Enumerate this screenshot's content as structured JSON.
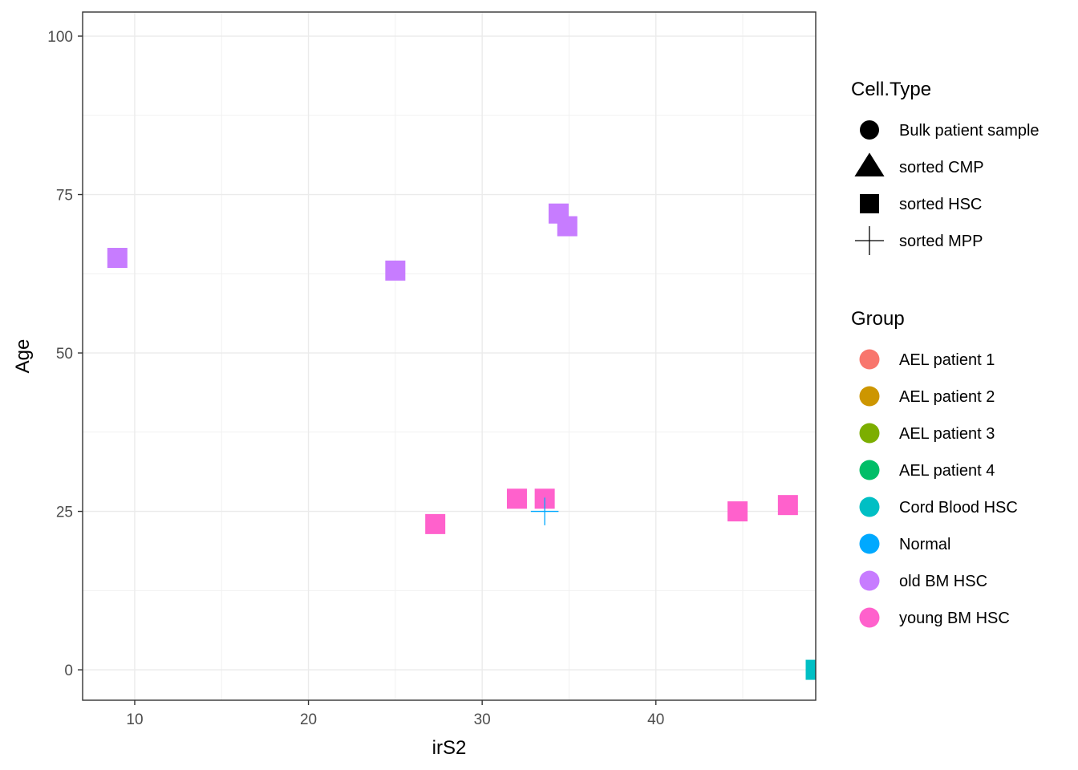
{
  "chart_data": {
    "type": "scatter",
    "xlabel": "irS2",
    "ylabel": "Age",
    "xlim": [
      7,
      49.2
    ],
    "ylim": [
      -4.8,
      103.8
    ],
    "x_ticks": [
      10,
      20,
      30,
      40
    ],
    "x_tick_labels": [
      "10",
      "20",
      "30",
      "40"
    ],
    "y_ticks": [
      0,
      25,
      50,
      75,
      100
    ],
    "y_tick_labels": [
      "0",
      "25",
      "50",
      "75",
      "100"
    ],
    "grid": true,
    "legend_position": "right",
    "shape_legend": {
      "title": "Cell.Type",
      "entries": [
        {
          "label": "Bulk patient sample",
          "shape": "circle"
        },
        {
          "label": "sorted CMP",
          "shape": "triangle"
        },
        {
          "label": "sorted HSC",
          "shape": "square"
        },
        {
          "label": "sorted MPP",
          "shape": "plus"
        }
      ]
    },
    "color_legend": {
      "title": "Group",
      "entries": [
        {
          "label": "AEL patient 1",
          "color": "#F8766D"
        },
        {
          "label": "AEL patient 2",
          "color": "#CD9600"
        },
        {
          "label": "AEL patient 3",
          "color": "#7CAE00"
        },
        {
          "label": "AEL patient 4",
          "color": "#00BE67"
        },
        {
          "label": "Cord Blood HSC",
          "color": "#00BFC4"
        },
        {
          "label": "Normal",
          "color": "#00A9FF"
        },
        {
          "label": "old BM HSC",
          "color": "#C77CFF"
        },
        {
          "label": "young BM HSC",
          "color": "#FF61CC"
        }
      ]
    },
    "points": [
      {
        "x": 9.0,
        "y": 65,
        "group": "old BM HSC",
        "cell_type": "sorted HSC"
      },
      {
        "x": 25.0,
        "y": 63,
        "group": "old BM HSC",
        "cell_type": "sorted HSC"
      },
      {
        "x": 34.4,
        "y": 72,
        "group": "old BM HSC",
        "cell_type": "sorted HSC"
      },
      {
        "x": 34.9,
        "y": 70,
        "group": "old BM HSC",
        "cell_type": "sorted HSC"
      },
      {
        "x": 27.3,
        "y": 23,
        "group": "young BM HSC",
        "cell_type": "sorted HSC"
      },
      {
        "x": 32.0,
        "y": 27,
        "group": "young BM HSC",
        "cell_type": "sorted HSC"
      },
      {
        "x": 33.6,
        "y": 27,
        "group": "young BM HSC",
        "cell_type": "sorted HSC"
      },
      {
        "x": 44.7,
        "y": 25,
        "group": "young BM HSC",
        "cell_type": "sorted HSC"
      },
      {
        "x": 47.6,
        "y": 26,
        "group": "young BM HSC",
        "cell_type": "sorted HSC"
      },
      {
        "x": 33.6,
        "y": 25,
        "group": "Normal",
        "cell_type": "sorted MPP"
      },
      {
        "x": 49.2,
        "y": 0,
        "group": "Cord Blood HSC",
        "cell_type": "sorted HSC"
      }
    ]
  }
}
